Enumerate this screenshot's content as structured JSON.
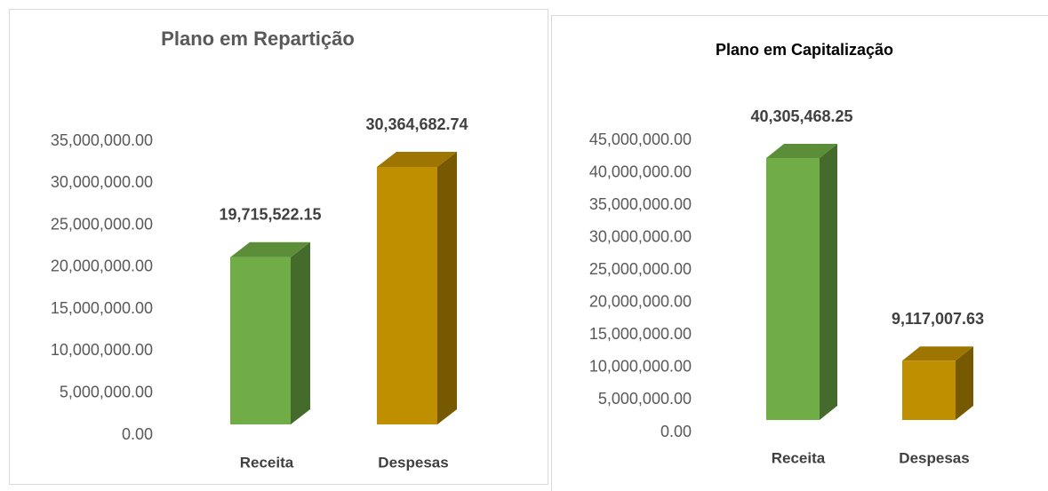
{
  "chart_data": [
    {
      "type": "bar3d",
      "title": "Plano em Repartição",
      "categories": [
        "Receita",
        "Despesas"
      ],
      "values": [
        19715522.15,
        30364682.74
      ],
      "value_labels": [
        "19,715,522.15",
        "30,364,682.74"
      ],
      "colors": [
        "#70ad47",
        "#bf8f00"
      ],
      "ylim": [
        0,
        35000000
      ],
      "yticks": [
        {
          "value": 0,
          "label": "0.00"
        },
        {
          "value": 5000000,
          "label": "5,000,000.00"
        },
        {
          "value": 10000000,
          "label": "10,000,000.00"
        },
        {
          "value": 15000000,
          "label": "15,000,000.00"
        },
        {
          "value": 20000000,
          "label": "20,000,000.00"
        },
        {
          "value": 25000000,
          "label": "25,000,000.00"
        },
        {
          "value": 30000000,
          "label": "30,000,000.00"
        },
        {
          "value": 35000000,
          "label": "35,000,000.00"
        }
      ]
    },
    {
      "type": "bar3d",
      "title": "Plano em Capitalização",
      "categories": [
        "Receita",
        "Despesas"
      ],
      "values": [
        40305468.25,
        9117007.63
      ],
      "value_labels": [
        "40,305,468.25",
        "9,117,007.63"
      ],
      "colors": [
        "#70ad47",
        "#bf8f00"
      ],
      "ylim": [
        0,
        45000000
      ],
      "yticks": [
        {
          "value": 0,
          "label": "0.00"
        },
        {
          "value": 5000000,
          "label": "5,000,000.00"
        },
        {
          "value": 10000000,
          "label": "10,000,000.00"
        },
        {
          "value": 15000000,
          "label": "15,000,000.00"
        },
        {
          "value": 20000000,
          "label": "20,000,000.00"
        },
        {
          "value": 25000000,
          "label": "25,000,000.00"
        },
        {
          "value": 30000000,
          "label": "30,000,000.00"
        },
        {
          "value": 35000000,
          "label": "35,000,000.00"
        },
        {
          "value": 40000000,
          "label": "40,000,000.00"
        },
        {
          "value": 45000000,
          "label": "45,000,000.00"
        }
      ]
    }
  ]
}
